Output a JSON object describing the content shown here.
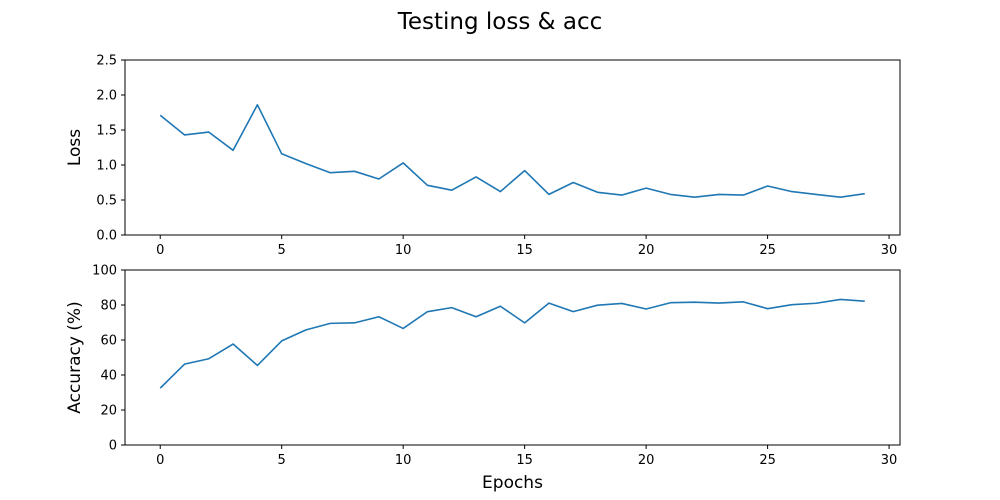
{
  "figure": {
    "title": "Testing loss & acc"
  },
  "chart_data": [
    {
      "type": "line",
      "title": "",
      "xlabel": "",
      "ylabel": "Loss",
      "xlim": [
        -1.45,
        30.45
      ],
      "ylim": [
        0,
        2.5
      ],
      "xticks": [
        0,
        5,
        10,
        15,
        20,
        25,
        30
      ],
      "yticks": [
        0.0,
        0.5,
        1.0,
        1.5,
        2.0,
        2.5
      ],
      "ytick_labels": [
        "0.0",
        "0.5",
        "1.0",
        "1.5",
        "2.0",
        "2.5"
      ],
      "grid": false,
      "color": "#1f77b4",
      "x": [
        0,
        1,
        2,
        3,
        4,
        5,
        6,
        7,
        8,
        9,
        10,
        11,
        12,
        13,
        14,
        15,
        16,
        17,
        18,
        19,
        20,
        21,
        22,
        23,
        24,
        25,
        26,
        27,
        28,
        29
      ],
      "values": [
        1.71,
        1.43,
        1.47,
        1.21,
        1.86,
        1.16,
        1.02,
        0.89,
        0.91,
        0.8,
        1.03,
        0.71,
        0.64,
        0.83,
        0.62,
        0.92,
        0.58,
        0.75,
        0.61,
        0.57,
        0.67,
        0.58,
        0.54,
        0.58,
        0.57,
        0.7,
        0.62,
        0.58,
        0.54,
        0.59
      ]
    },
    {
      "type": "line",
      "title": "",
      "xlabel": "Epochs",
      "ylabel": "Accuracy (%)",
      "xlim": [
        -1.45,
        30.45
      ],
      "ylim": [
        0,
        100
      ],
      "xticks": [
        0,
        5,
        10,
        15,
        20,
        25,
        30
      ],
      "yticks": [
        0,
        20,
        40,
        60,
        80,
        100
      ],
      "ytick_labels": [
        "0",
        "20",
        "40",
        "60",
        "80",
        "100"
      ],
      "grid": false,
      "color": "#1f77b4",
      "x": [
        0,
        1,
        2,
        3,
        4,
        5,
        6,
        7,
        8,
        9,
        10,
        11,
        12,
        13,
        14,
        15,
        16,
        17,
        18,
        19,
        20,
        21,
        22,
        23,
        24,
        25,
        26,
        27,
        28,
        29
      ],
      "values": [
        32.5,
        46.2,
        49.3,
        57.7,
        45.5,
        59.5,
        65.8,
        69.5,
        69.8,
        73.3,
        66.6,
        76.2,
        78.5,
        73.3,
        79.3,
        69.8,
        81.1,
        76.2,
        79.9,
        80.9,
        77.7,
        81.3,
        81.6,
        81.1,
        81.8,
        77.9,
        80.2,
        81.0,
        83.2,
        82.2
      ]
    }
  ]
}
